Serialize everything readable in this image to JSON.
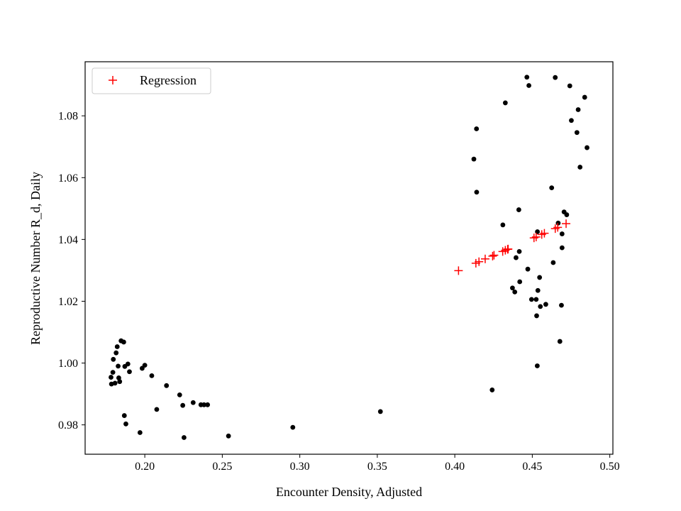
{
  "chart_data": {
    "type": "scatter",
    "title": "",
    "xlabel": "Encounter Density, Adjusted",
    "ylabel": "Reproductive Number R_d, Daily",
    "xlim": [
      0.1615,
      0.502
    ],
    "ylim": [
      0.9705,
      1.0975
    ],
    "xticks": [
      0.2,
      0.25,
      0.3,
      0.35,
      0.4,
      0.45,
      0.5
    ],
    "xtick_labels": [
      "0.20",
      "0.25",
      "0.30",
      "0.35",
      "0.40",
      "0.45",
      "0.50"
    ],
    "yticks": [
      0.98,
      1.0,
      1.02,
      1.04,
      1.06,
      1.08
    ],
    "ytick_labels": [
      "0.98",
      "1.00",
      "1.02",
      "1.04",
      "1.06",
      "1.08"
    ],
    "grid": false,
    "legend": {
      "position": "top-left",
      "entries": [
        {
          "label": "Regression",
          "marker": "+",
          "color": "#ff0000"
        }
      ]
    },
    "series": [
      {
        "marker": "dot",
        "color": "#000000",
        "points": [
          [
            0.1782,
            0.9954
          ],
          [
            0.1794,
            0.997
          ],
          [
            0.1785,
            0.9932
          ],
          [
            0.1797,
            1.0012
          ],
          [
            0.1808,
            0.9935
          ],
          [
            0.1815,
            1.0033
          ],
          [
            0.1822,
            1.0053
          ],
          [
            0.1828,
            0.999
          ],
          [
            0.1832,
            0.9952
          ],
          [
            0.1838,
            0.994
          ],
          [
            0.1847,
            1.0072
          ],
          [
            0.1864,
            1.0068
          ],
          [
            0.1871,
            0.9989
          ],
          [
            0.1868,
            0.983
          ],
          [
            0.1878,
            0.9803
          ],
          [
            0.1891,
            0.9997
          ],
          [
            0.1901,
            0.9972
          ],
          [
            0.1969,
            0.9775
          ],
          [
            0.1983,
            0.9983
          ],
          [
            0.2,
            0.9993
          ],
          [
            0.2045,
            0.9959
          ],
          [
            0.2077,
            0.985
          ],
          [
            0.214,
            0.9927
          ],
          [
            0.2225,
            0.9897
          ],
          [
            0.2245,
            0.9863
          ],
          [
            0.2253,
            0.9759
          ],
          [
            0.2312,
            0.9872
          ],
          [
            0.2362,
            0.9865
          ],
          [
            0.2382,
            0.9865
          ],
          [
            0.2405,
            0.9865
          ],
          [
            0.254,
            0.9764
          ],
          [
            0.2955,
            0.9792
          ],
          [
            0.352,
            0.9843
          ],
          [
            0.4123,
            1.066
          ],
          [
            0.414,
            1.0758
          ],
          [
            0.4141,
            1.0553
          ],
          [
            0.4241,
            0.9913
          ],
          [
            0.431,
            1.0447
          ],
          [
            0.4326,
            1.0842
          ],
          [
            0.4372,
            1.0243
          ],
          [
            0.4387,
            1.023
          ],
          [
            0.4395,
            1.0341
          ],
          [
            0.4413,
            1.0496
          ],
          [
            0.4416,
            1.0361
          ],
          [
            0.4419,
            1.0263
          ],
          [
            0.4465,
            1.0925
          ],
          [
            0.4471,
            1.0304
          ],
          [
            0.4478,
            1.0898
          ],
          [
            0.4495,
            1.0206
          ],
          [
            0.4525,
            1.0206
          ],
          [
            0.4528,
            1.0153
          ],
          [
            0.4532,
            0.9991
          ],
          [
            0.4533,
            1.0425
          ],
          [
            0.4536,
            1.0235
          ],
          [
            0.4547,
            1.0277
          ],
          [
            0.4552,
            1.0183
          ],
          [
            0.4587,
            1.019
          ],
          [
            0.4625,
            1.0567
          ],
          [
            0.4635,
            1.0325
          ],
          [
            0.4648,
            1.0924
          ],
          [
            0.4667,
            1.0453
          ],
          [
            0.4678,
            1.007
          ],
          [
            0.4688,
            1.0187
          ],
          [
            0.4692,
            1.0373
          ],
          [
            0.4692,
            1.0418
          ],
          [
            0.4705,
            1.0489
          ],
          [
            0.4722,
            1.048
          ],
          [
            0.4742,
            1.0897
          ],
          [
            0.4752,
            1.0785
          ],
          [
            0.4788,
            1.0746
          ],
          [
            0.4796,
            1.082
          ],
          [
            0.4808,
            1.0634
          ],
          [
            0.4838,
            1.086
          ],
          [
            0.4853,
            1.0697
          ]
        ]
      },
      {
        "name": "Regression",
        "marker": "+",
        "color": "#ff0000",
        "points": [
          [
            0.4024,
            1.0299
          ],
          [
            0.4136,
            1.0323
          ],
          [
            0.4156,
            1.0328
          ],
          [
            0.4196,
            1.0337
          ],
          [
            0.4244,
            1.0346
          ],
          [
            0.4253,
            1.0349
          ],
          [
            0.4309,
            1.0361
          ],
          [
            0.4326,
            1.0365
          ],
          [
            0.4341,
            1.0368
          ],
          [
            0.4344,
            1.0369
          ],
          [
            0.4511,
            1.0405
          ],
          [
            0.4525,
            1.0408
          ],
          [
            0.4561,
            1.0416
          ],
          [
            0.4578,
            1.042
          ],
          [
            0.4648,
            1.0435
          ],
          [
            0.4664,
            1.0439
          ],
          [
            0.4718,
            1.0451
          ]
        ]
      }
    ]
  }
}
